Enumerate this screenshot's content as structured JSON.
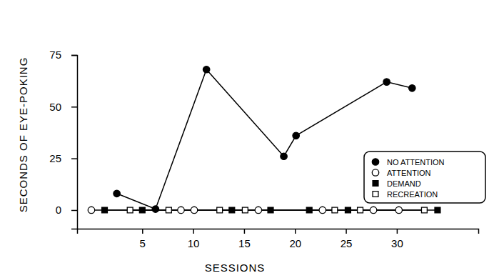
{
  "chart_data": {
    "type": "line",
    "xlabel": "SESSIONS",
    "ylabel": "SECONDS OF EYE-POKING",
    "xlim": [
      -1.4,
      38
    ],
    "ylim": [
      -9,
      75
    ],
    "xticks": [
      5,
      10,
      15,
      20,
      25,
      30
    ],
    "yticks": [
      0,
      25,
      50,
      75
    ],
    "grid": false,
    "legend": "lower right",
    "series": [
      {
        "name": "NO ATTENTION",
        "color": "#000000",
        "marker": "filled-circle",
        "x": [
          2.5,
          6.3,
          11.3,
          18.9,
          20.1,
          29.0,
          31.5
        ],
        "values": [
          8,
          0.5,
          68,
          26,
          36,
          62,
          59
        ]
      },
      {
        "name": "ATTENTION",
        "color": "#000000",
        "marker": "open-circle",
        "x": [
          0,
          8.8,
          10.1,
          16.4,
          22.7,
          27.7,
          30.2
        ],
        "values": [
          0,
          0,
          0,
          0,
          0,
          0,
          0
        ]
      },
      {
        "name": "DEMAND",
        "color": "#000000",
        "marker": "filled-square",
        "x": [
          1.3,
          5.0,
          13.8,
          17.6,
          21.4,
          25.2,
          34.0
        ],
        "values": [
          0,
          0,
          0,
          0,
          0,
          0,
          0
        ]
      },
      {
        "name": "RECREATION",
        "color": "#000000",
        "marker": "open-square",
        "x": [
          3.8,
          7.6,
          12.6,
          15.1,
          23.9,
          26.4,
          32.7
        ],
        "values": [
          0,
          0,
          0,
          0,
          0,
          0,
          0
        ]
      }
    ]
  }
}
